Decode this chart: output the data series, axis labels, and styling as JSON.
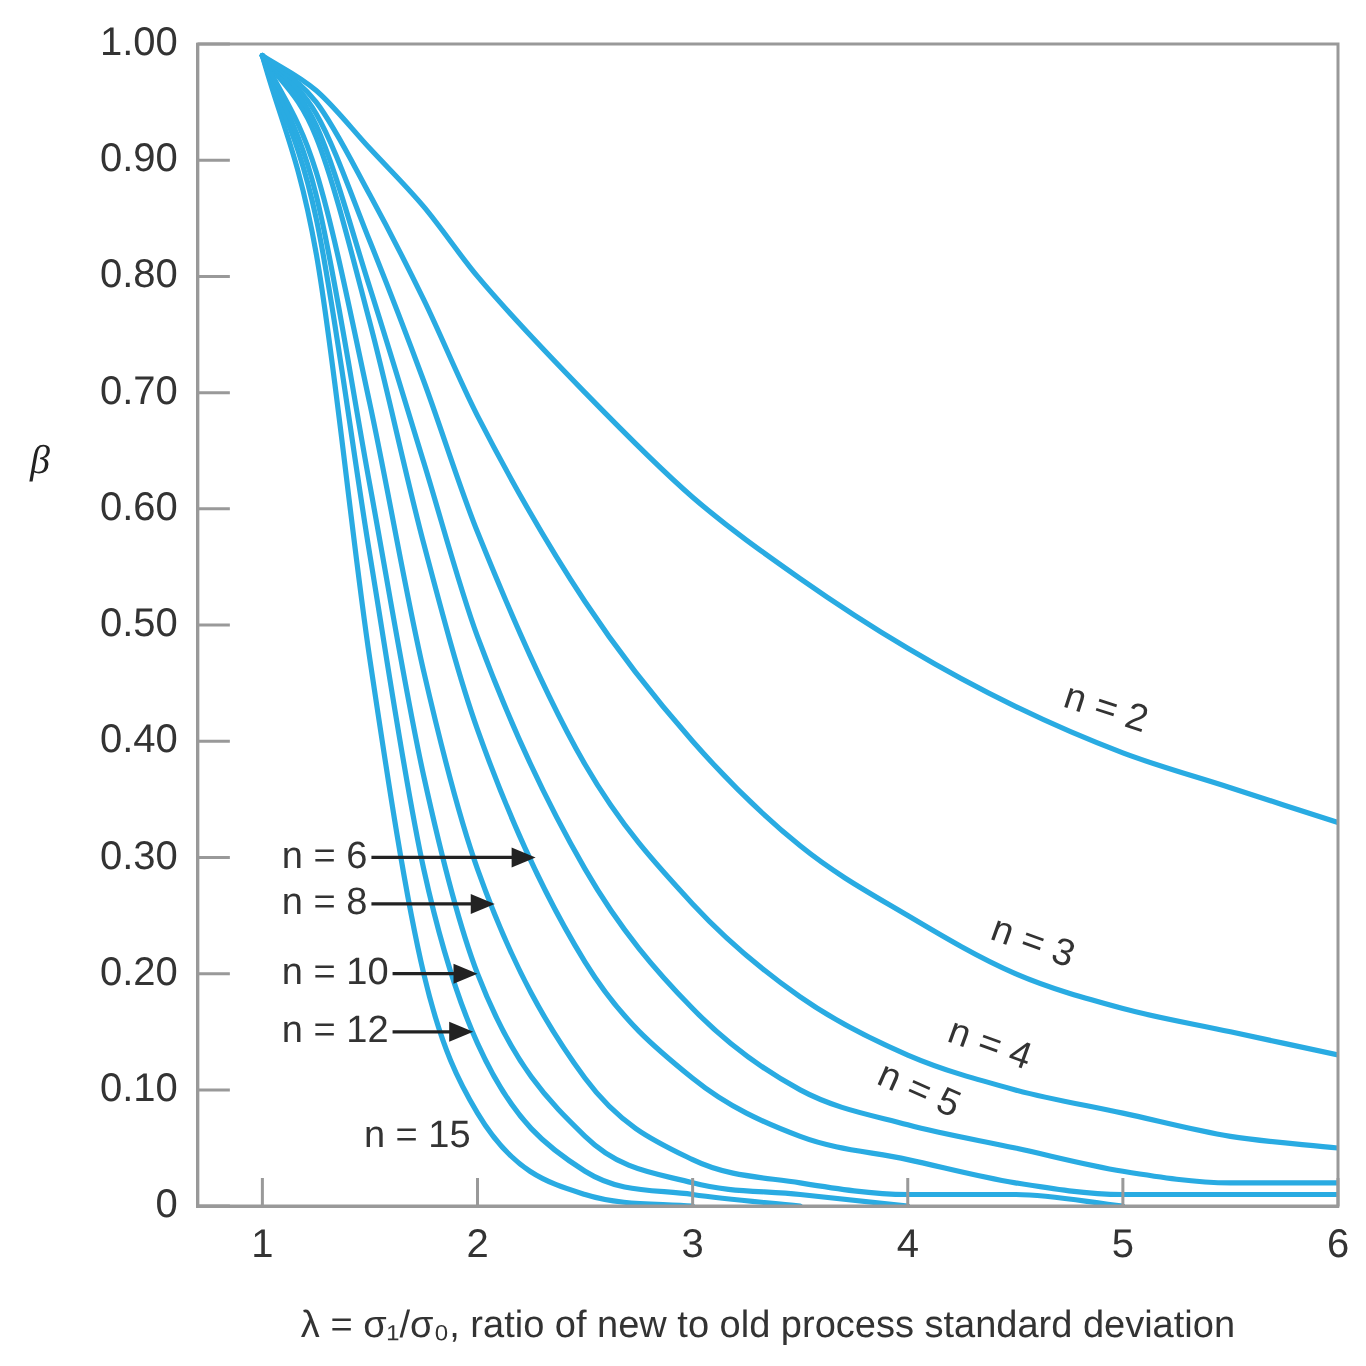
{
  "chart_data": {
    "type": "line",
    "xlabel": "λ = σ₁/σ₀, ratio of new to old process standard deviation",
    "ylabel": "β",
    "x": [
      1,
      1.25,
      1.5,
      1.75,
      2,
      2.5,
      3,
      3.5,
      4,
      4.5,
      5,
      5.5,
      6
    ],
    "series": [
      {
        "name": "n = 2",
        "color": "#29abe2",
        "values": [
          0.99,
          0.96,
          0.91,
          0.86,
          0.8,
          0.7,
          0.61,
          0.54,
          0.48,
          0.43,
          0.39,
          0.36,
          0.33
        ]
      },
      {
        "name": "n = 3",
        "color": "#29abe2",
        "values": [
          0.99,
          0.95,
          0.87,
          0.78,
          0.68,
          0.52,
          0.4,
          0.31,
          0.25,
          0.2,
          0.17,
          0.15,
          0.13
        ]
      },
      {
        "name": "n = 4",
        "color": "#29abe2",
        "values": [
          0.99,
          0.94,
          0.83,
          0.71,
          0.58,
          0.38,
          0.26,
          0.18,
          0.13,
          0.1,
          0.08,
          0.06,
          0.05
        ]
      },
      {
        "name": "n = 5",
        "color": "#29abe2",
        "values": [
          0.99,
          0.93,
          0.79,
          0.64,
          0.49,
          0.29,
          0.17,
          0.1,
          0.07,
          0.05,
          0.03,
          0.02,
          0.02
        ]
      },
      {
        "color": "#29abe2",
        "values": [
          0.99,
          0.92,
          0.76,
          0.57,
          0.41,
          0.21,
          0.11,
          0.06,
          0.04,
          0.02,
          0.01,
          0.01,
          0.01
        ]
      },
      {
        "color": "#29abe2",
        "values": [
          0.99,
          0.89,
          0.69,
          0.46,
          0.29,
          0.11,
          0.04,
          0.02,
          0.01,
          0.01,
          0,
          null,
          null
        ]
      },
      {
        "color": "#29abe2",
        "values": [
          0.99,
          0.87,
          0.62,
          0.37,
          0.2,
          0.06,
          0.02,
          0.01,
          0,
          null,
          null,
          null,
          null
        ]
      },
      {
        "color": "#29abe2",
        "values": [
          0.99,
          0.85,
          0.56,
          0.29,
          0.14,
          0.03,
          0.01,
          0,
          null,
          null,
          null,
          null,
          null
        ]
      },
      {
        "name": "n = 15",
        "color": "#29abe2",
        "values": [
          0.99,
          0.82,
          0.47,
          0.2,
          0.08,
          0.01,
          0,
          null,
          null,
          null,
          null,
          null,
          null
        ]
      }
    ],
    "annotations": [
      {
        "text": "n = 6",
        "x": 2.27,
        "y": 0.3
      },
      {
        "text": "n = 8",
        "x": 2.08,
        "y": 0.26
      },
      {
        "text": "n = 10",
        "x": 2.0,
        "y": 0.2
      },
      {
        "text": "n = 12",
        "x": 1.98,
        "y": 0.15
      }
    ],
    "xlim": [
      0.7,
      6
    ],
    "xticks": [
      1,
      2,
      3,
      4,
      5,
      6
    ],
    "ylim": [
      0,
      1
    ],
    "yticks": [
      0,
      {
        "value": 0.1,
        "label": "0.10"
      },
      {
        "value": 0.2,
        "label": "0.20"
      },
      {
        "value": 0.3,
        "label": "0.30"
      },
      {
        "value": 0.4,
        "label": "0.40"
      },
      {
        "value": 0.5,
        "label": "0.50"
      },
      {
        "value": 0.6,
        "label": "0.60"
      },
      {
        "value": 0.7,
        "label": "0.70"
      },
      {
        "value": 0.8,
        "label": "0.80"
      },
      {
        "value": 0.9,
        "label": "0.90"
      },
      {
        "value": 1,
        "label": "1.00"
      }
    ],
    "grid": false,
    "legend": false,
    "marker": "none",
    "line_style": "solid"
  }
}
